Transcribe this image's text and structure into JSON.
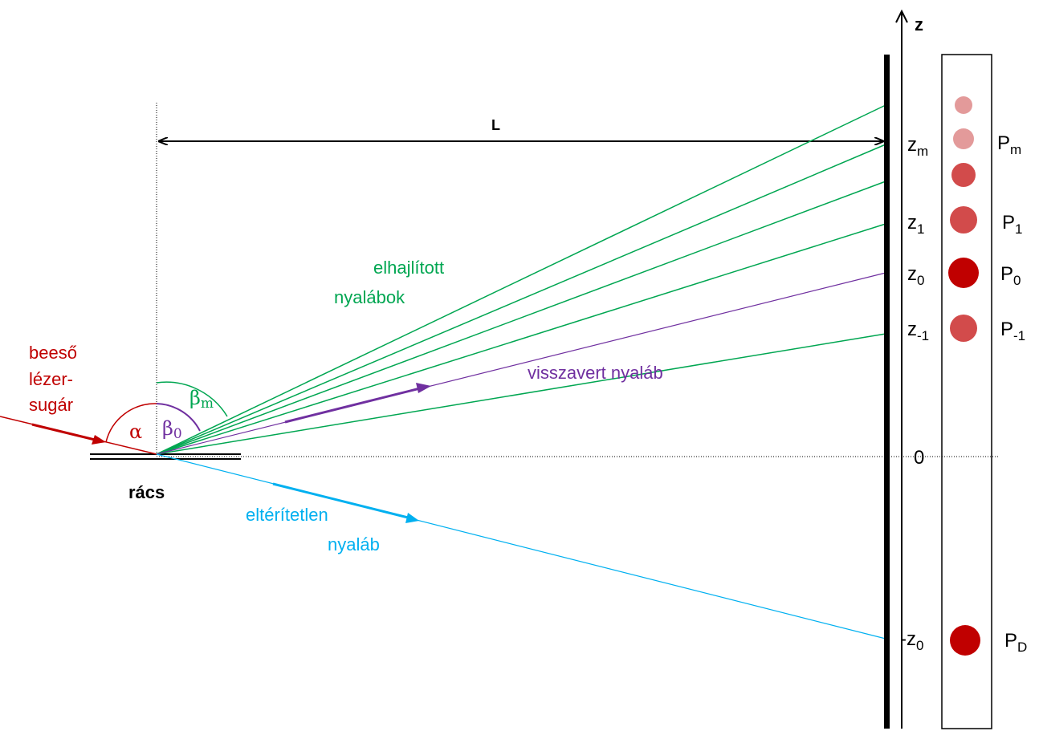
{
  "colors": {
    "incident": "#c00000",
    "diffracted": "#00a651",
    "reflected": "#7030a0",
    "undeviated": "#00b0f0",
    "black": "#000000",
    "spot_full": "#c00000",
    "spot_mid": "#d24b4b",
    "spot_light": "#e39a9a"
  },
  "labels": {
    "incident_line1": "beeső",
    "incident_line2": "lézer-",
    "incident_line3": "sugár",
    "alpha": "α",
    "beta_zero": "β",
    "beta_zero_sub": "0",
    "beta_m": "β",
    "beta_m_sub": "m",
    "grating": "rács",
    "distance": "L",
    "diffracted_line1": "elhajlított",
    "diffracted_line2": "nyalábok",
    "reflected": "visszavert nyaláb",
    "undeviated_line1": "eltérítetlen",
    "undeviated_line2": "nyaláb",
    "axis": "z"
  },
  "z_ticks": [
    {
      "base": "z",
      "sub": "m",
      "prefix": ""
    },
    {
      "base": "z",
      "sub": "1",
      "prefix": ""
    },
    {
      "base": "z",
      "sub": "0",
      "prefix": ""
    },
    {
      "base": "z",
      "sub": "-1",
      "prefix": ""
    },
    {
      "base": "0",
      "sub": "",
      "prefix": ""
    },
    {
      "base": "z",
      "sub": "0",
      "prefix": "-"
    }
  ],
  "spot_labels": [
    {
      "base": "P",
      "sub": "m"
    },
    {
      "base": "P",
      "sub": "1"
    },
    {
      "base": "P",
      "sub": "0"
    },
    {
      "base": "P",
      "sub": "-1"
    },
    {
      "base": "P",
      "sub": "D"
    }
  ],
  "spots": [
    {
      "name": "spot-faint-top",
      "shade": "spot_light"
    },
    {
      "name": "spot-m",
      "shade": "spot_light"
    },
    {
      "name": "spot-2",
      "shade": "spot_mid"
    },
    {
      "name": "spot-1",
      "shade": "spot_mid"
    },
    {
      "name": "spot-0",
      "shade": "spot_full"
    },
    {
      "name": "spot-minus-1",
      "shade": "spot_mid"
    },
    {
      "name": "spot-d",
      "shade": "spot_full"
    }
  ]
}
